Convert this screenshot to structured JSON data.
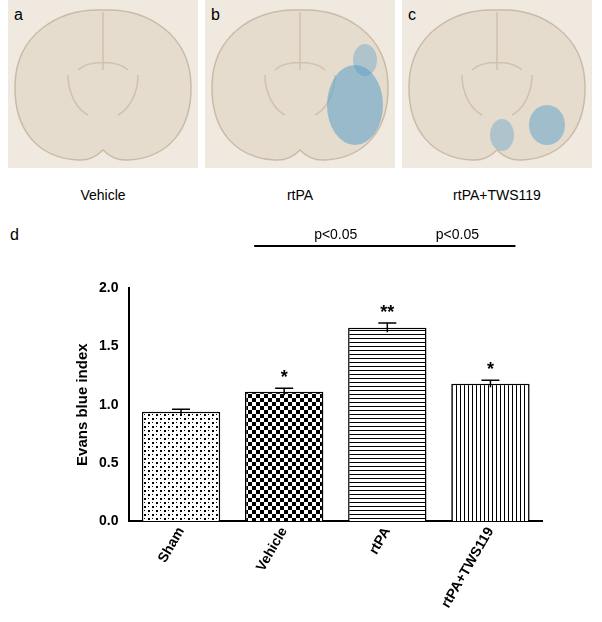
{
  "images": [
    {
      "letter": "a",
      "caption": "Vehicle"
    },
    {
      "letter": "b",
      "caption": "rtPA"
    },
    {
      "letter": "c",
      "caption": "rtPA+TWS119"
    }
  ],
  "chart_data": {
    "type": "bar",
    "panel_letter": "d",
    "y_label": "Evans blue index",
    "categories": [
      "Sham",
      "Vehicle",
      "rtPA",
      "rtPA+TWS119"
    ],
    "values": [
      0.94,
      1.11,
      1.66,
      1.18
    ],
    "errors": [
      0.02,
      0.03,
      0.04,
      0.03
    ],
    "significance_marks": [
      null,
      "*",
      "**",
      "*"
    ],
    "comparisons": [
      {
        "from": "Vehicle",
        "to": "rtPA",
        "label": "p<0.05"
      },
      {
        "from": "rtPA",
        "to": "rtPA+TWS119",
        "label": "p<0.05"
      }
    ],
    "color": "#000000",
    "ylim": [
      0,
      2
    ],
    "yticks": [
      {
        "value": 0,
        "label": "0.0"
      },
      {
        "value": 0.5,
        "label": "0.5"
      },
      {
        "value": 1,
        "label": "1.0"
      },
      {
        "value": 1.5,
        "label": "1.5"
      },
      {
        "value": 2,
        "label": "2.0"
      }
    ],
    "grid": false
  }
}
